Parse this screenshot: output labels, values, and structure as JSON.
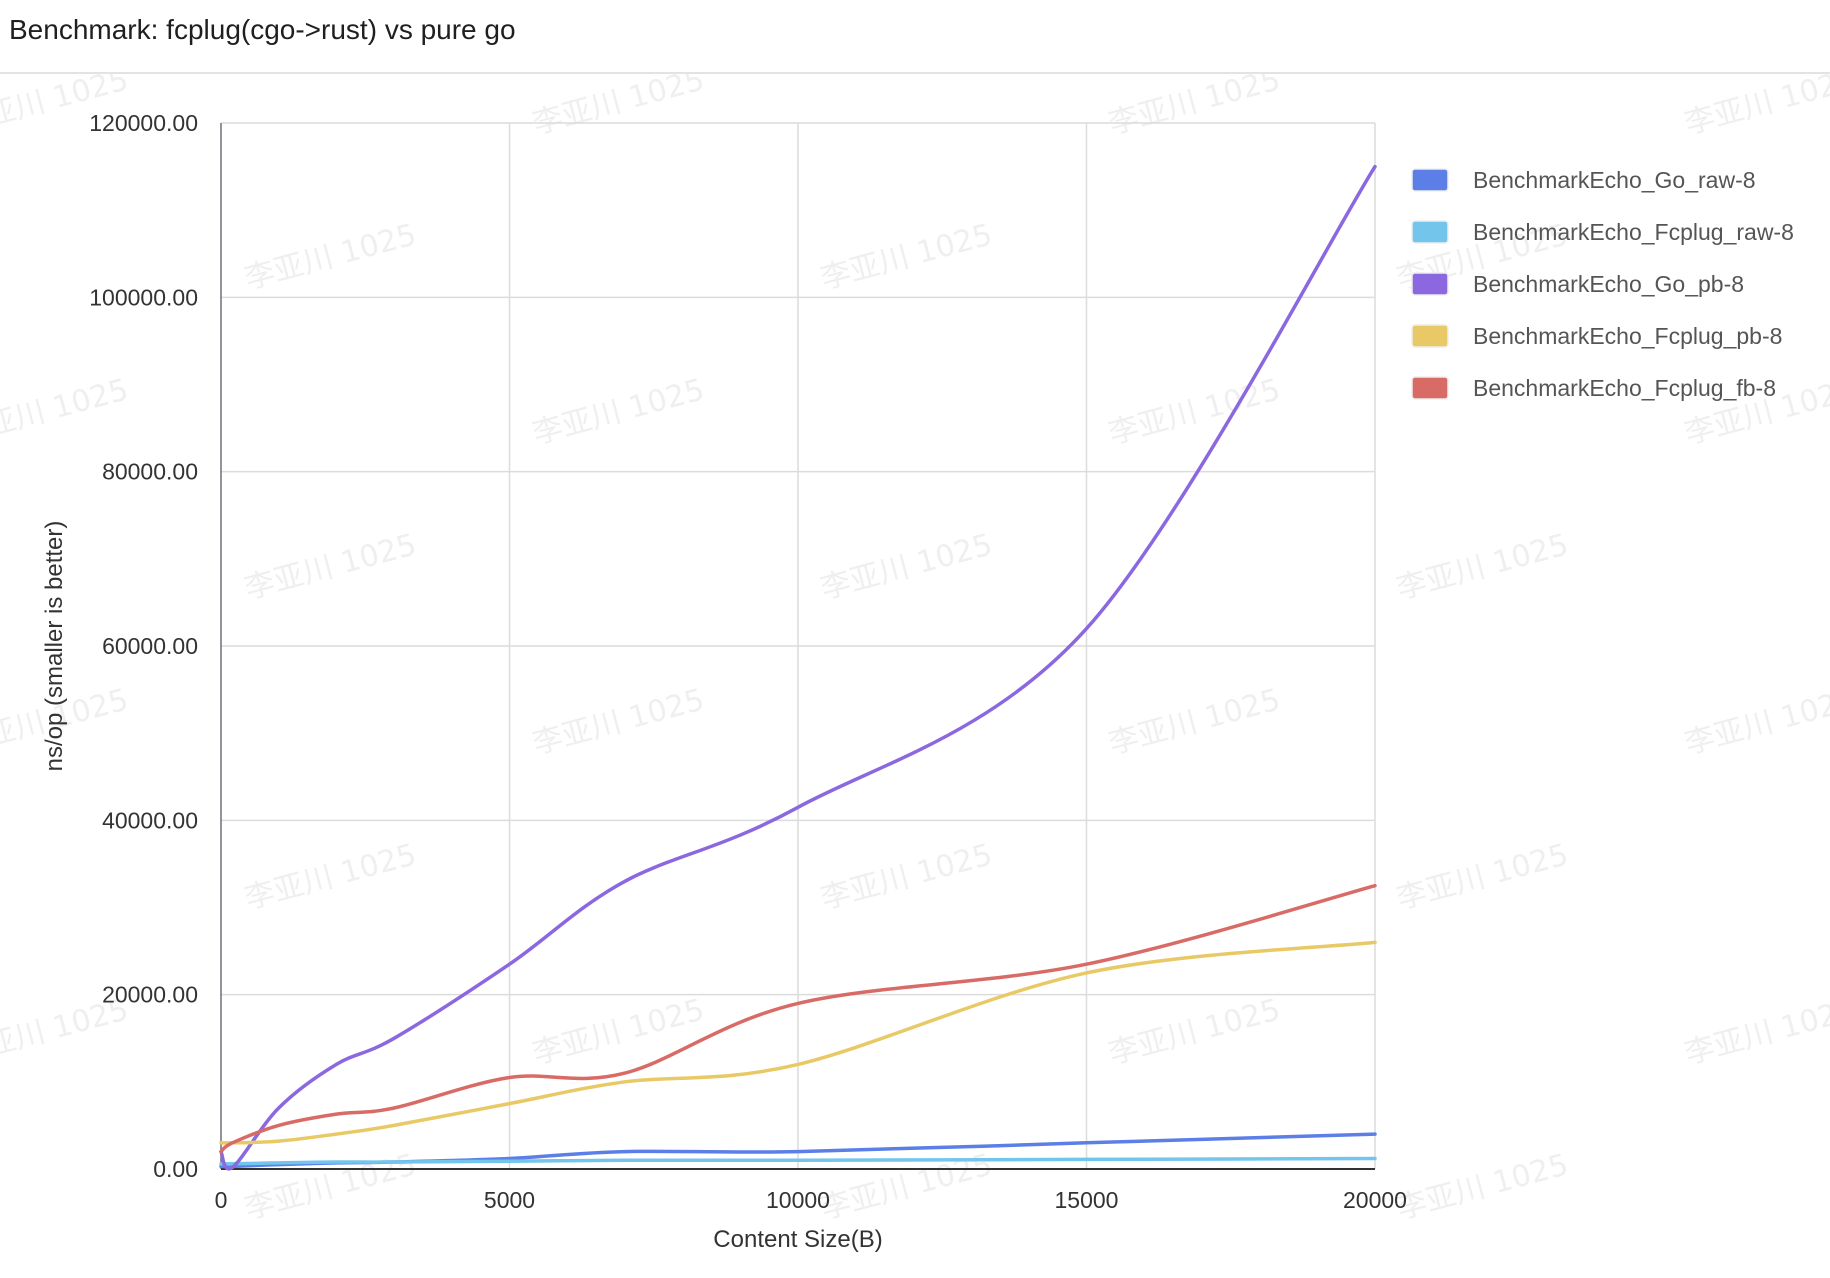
{
  "header": {
    "title": "Benchmark: fcplug(cgo->rust) vs pure go"
  },
  "watermark": {
    "text": "李亚川 1025"
  },
  "chart_data": {
    "type": "line",
    "title": "Benchmark: fcplug(cgo->rust) vs pure go",
    "xlabel": "Content Size(B)",
    "ylabel": "ns/op (smaller is better)",
    "xlim": [
      0,
      20000
    ],
    "ylim": [
      0,
      120000
    ],
    "xticks": [
      0,
      5000,
      10000,
      15000,
      20000
    ],
    "yticks": [
      0,
      20000,
      40000,
      60000,
      80000,
      100000,
      120000
    ],
    "ytick_labels": [
      "0.00",
      "20000.00",
      "40000.00",
      "60000.00",
      "80000.00",
      "100000.00",
      "120000.00"
    ],
    "grid": true,
    "legend_position": "right",
    "x": [
      0,
      200,
      1000,
      2000,
      3000,
      5000,
      7000,
      10000,
      15000,
      20000
    ],
    "series": [
      {
        "name": "BenchmarkEcho_Go_raw-8",
        "color": "#5b7fe6",
        "values": [
          300,
          300,
          500,
          700,
          800,
          1200,
          2000,
          2000,
          3000,
          4000
        ]
      },
      {
        "name": "BenchmarkEcho_Fcplug_raw-8",
        "color": "#73c5ec",
        "values": [
          600,
          600,
          700,
          800,
          800,
          900,
          1000,
          1000,
          1100,
          1200
        ]
      },
      {
        "name": "BenchmarkEcho_Go_pb-8",
        "color": "#8b67e0",
        "values": [
          2000,
          200,
          7000,
          12000,
          15000,
          23500,
          33000,
          41500,
          62000,
          115000
        ]
      },
      {
        "name": "BenchmarkEcho_Fcplug_pb-8",
        "color": "#e8c966",
        "values": [
          3000,
          3000,
          3200,
          4000,
          5000,
          7500,
          10000,
          12000,
          22500,
          26000
        ]
      },
      {
        "name": "BenchmarkEcho_Fcplug_fb-8",
        "color": "#d96b66",
        "values": [
          2000,
          3000,
          5000,
          6300,
          7000,
          10500,
          11000,
          19000,
          23500,
          32500
        ]
      }
    ]
  }
}
